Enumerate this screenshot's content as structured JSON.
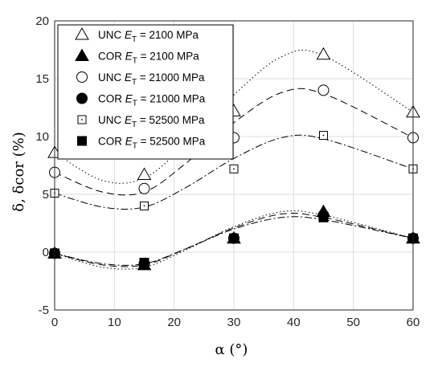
{
  "chart_data": {
    "type": "scatter",
    "xlabel": "α (°)",
    "ylabel": "δ, δcor (%)",
    "xlim": [
      0,
      60
    ],
    "ylim": [
      -5,
      20
    ],
    "xticks": [
      "0",
      "10",
      "20",
      "30",
      "40",
      "50",
      "60"
    ],
    "yticks": [
      "-5",
      "0",
      "5",
      "10",
      "15",
      "20"
    ],
    "grid": true,
    "legend_position": "top-left",
    "series": [
      {
        "name": "UNC ET = 2100 MPa",
        "label_main": "UNC ",
        "label_sym": "E",
        "label_sub": "T",
        "label_rest": " = 2100 MPa",
        "marker": "triangle-open",
        "line": "dotted",
        "x": [
          0,
          15,
          30,
          45,
          60
        ],
        "y": [
          8.6,
          6.7,
          12.2,
          17.1,
          12.1
        ],
        "fit": [
          8.6,
          6.2,
          6.4,
          9.4,
          13.6,
          16.9,
          17.0,
          12.1
        ]
      },
      {
        "name": "COR ET = 2100 MPa",
        "label_main": "COR ",
        "label_sym": "E",
        "label_sub": "T",
        "label_rest": " = 2100 MPa",
        "marker": "triangle-filled",
        "line": "dotted",
        "x": [
          0,
          15,
          30,
          45,
          60
        ],
        "y": [
          -0.1,
          -1.1,
          1.2,
          3.5,
          1.2
        ],
        "fit": [
          -0.1,
          -1.3,
          -1.3,
          0.2,
          2.2,
          3.5,
          3.2,
          1.2
        ]
      },
      {
        "name": "UNC ET = 21000 MPa",
        "label_main": "UNC ",
        "label_sym": "E",
        "label_sub": "T",
        "label_rest": " = 21000 MPa",
        "marker": "circle-open",
        "line": "dashed",
        "x": [
          0,
          15,
          30,
          45,
          60
        ],
        "y": [
          6.9,
          5.5,
          9.9,
          14.0,
          9.9
        ],
        "fit": [
          6.9,
          5.2,
          5.2,
          7.7,
          11.2,
          13.8,
          13.7,
          9.9
        ]
      },
      {
        "name": "COR ET = 21000 MPa",
        "label_main": "COR ",
        "label_sym": "E",
        "label_sub": "T",
        "label_rest": " = 21000 MPa",
        "marker": "circle-filled",
        "line": "dashed",
        "x": [
          0,
          15,
          30,
          45,
          60
        ],
        "y": [
          -0.1,
          -1.0,
          1.2,
          3.2,
          1.2
        ],
        "fit": [
          -0.1,
          -1.1,
          -1.1,
          0.3,
          2.1,
          3.3,
          3.0,
          1.2
        ]
      },
      {
        "name": "UNC ET = 52500 MPa",
        "label_main": "UNC ",
        "label_sym": "E",
        "label_sub": "T",
        "label_rest": " = 52500 MPa",
        "marker": "square-open",
        "line": "dashdot",
        "x": [
          0,
          15,
          30,
          45,
          60
        ],
        "y": [
          5.1,
          4.0,
          7.2,
          10.1,
          7.2
        ],
        "fit": [
          5.1,
          3.9,
          3.9,
          5.6,
          8.1,
          9.9,
          9.8,
          7.2
        ]
      },
      {
        "name": "COR ET = 52500 MPa",
        "label_main": "COR ",
        "label_sym": "E",
        "label_sub": "T",
        "label_rest": " = 52500 MPa",
        "marker": "square-filled",
        "line": "dashdot",
        "x": [
          0,
          15,
          30,
          45,
          60
        ],
        "y": [
          -0.1,
          -0.9,
          1.2,
          3.0,
          1.2
        ],
        "fit": [
          -0.1,
          -1.0,
          -1.0,
          0.3,
          2.0,
          3.0,
          2.8,
          1.2
        ]
      }
    ],
    "fit_x": [
      0,
      8,
      15,
      22,
      30,
      38,
      45,
      60
    ]
  }
}
